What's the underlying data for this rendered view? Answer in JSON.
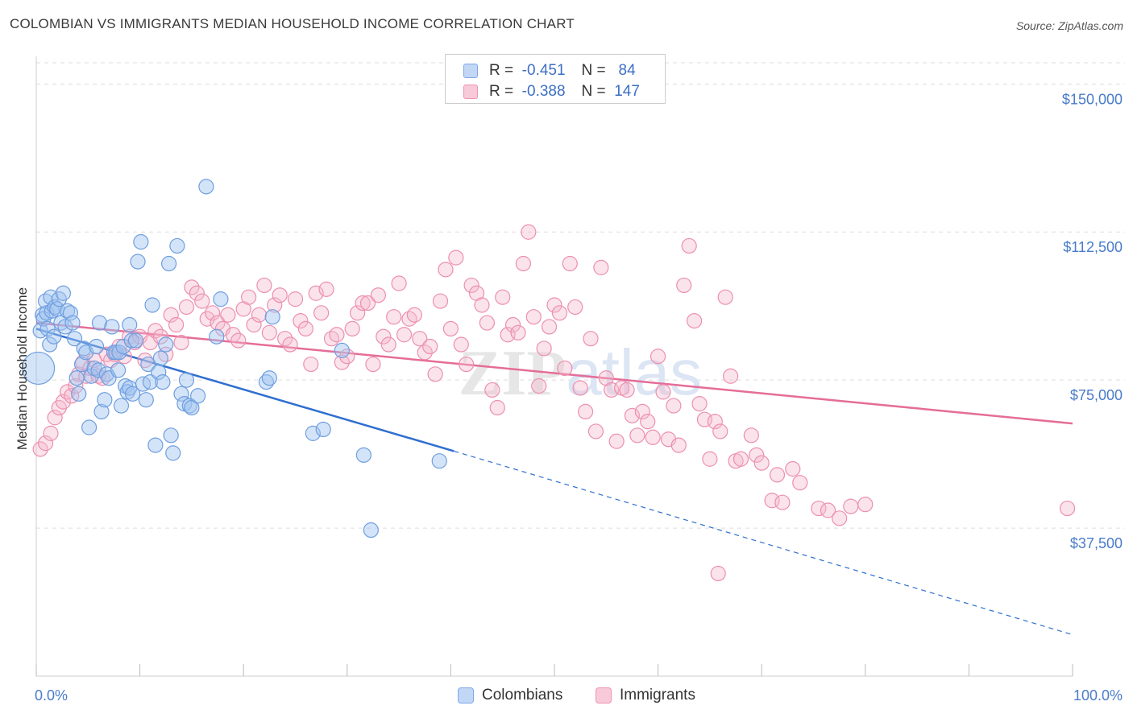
{
  "title": "COLOMBIAN VS IMMIGRANTS MEDIAN HOUSEHOLD INCOME CORRELATION CHART",
  "source": "Source: ZipAtlas.com",
  "watermark": "ZIPatlas",
  "legend": {
    "rows": [
      {
        "r_label": "R =",
        "r_value": "-0.451",
        "n_label": "N =",
        "n_value": "84",
        "color": "#7fa9e8",
        "fill": "#c2d6f5"
      },
      {
        "r_label": "R =",
        "r_value": "-0.388",
        "n_label": "N =",
        "n_value": "147",
        "color": "#ee94b4",
        "fill": "#f8c9d8"
      }
    ]
  },
  "bottom_legend": [
    {
      "label": "Colombians",
      "color": "#7fa9e8",
      "fill": "#c2d6f5"
    },
    {
      "label": "Immigrants",
      "color": "#ee94b4",
      "fill": "#f8c9d8"
    }
  ],
  "chart_data": {
    "type": "scatter",
    "title": "COLOMBIAN VS IMMIGRANTS MEDIAN HOUSEHOLD INCOME CORRELATION CHART",
    "xlabel": "",
    "ylabel": "Median Household Income",
    "xlim": [
      0,
      100
    ],
    "ylim": [
      0,
      157000
    ],
    "x_tick_labels": [
      "0.0%",
      "100.0%"
    ],
    "y_ticks": [
      37500,
      75000,
      112500,
      150000
    ],
    "y_tick_labels": [
      "$37,500",
      "$75,000",
      "$112,500",
      "$150,000"
    ],
    "grid": true,
    "legend_position": "top-center",
    "series": [
      {
        "name": "Colombians",
        "color": "#4a7fd4",
        "points": [
          [
            0.2,
            78000
          ],
          [
            0.4,
            87500
          ],
          [
            0.6,
            91500
          ],
          [
            0.7,
            90500
          ],
          [
            0.9,
            95000
          ],
          [
            1.0,
            92000
          ],
          [
            1.1,
            88000
          ],
          [
            1.3,
            84000
          ],
          [
            1.4,
            96000
          ],
          [
            1.5,
            92500
          ],
          [
            1.7,
            86000
          ],
          [
            1.8,
            93500
          ],
          [
            2.0,
            93000
          ],
          [
            2.2,
            95500
          ],
          [
            2.4,
            89500
          ],
          [
            2.6,
            97000
          ],
          [
            2.8,
            88500
          ],
          [
            3.0,
            92500
          ],
          [
            3.3,
            92000
          ],
          [
            3.5,
            89500
          ],
          [
            3.7,
            85500
          ],
          [
            3.9,
            75500
          ],
          [
            4.1,
            71500
          ],
          [
            4.4,
            79000
          ],
          [
            4.6,
            83000
          ],
          [
            4.8,
            82000
          ],
          [
            5.1,
            63000
          ],
          [
            5.3,
            76000
          ],
          [
            5.6,
            78000
          ],
          [
            5.8,
            83500
          ],
          [
            6.0,
            77500
          ],
          [
            6.1,
            89500
          ],
          [
            6.3,
            67000
          ],
          [
            6.6,
            70000
          ],
          [
            6.8,
            76500
          ],
          [
            7.0,
            75500
          ],
          [
            7.3,
            88500
          ],
          [
            7.5,
            82000
          ],
          [
            7.7,
            82000
          ],
          [
            7.9,
            77500
          ],
          [
            8.0,
            82000
          ],
          [
            8.2,
            68500
          ],
          [
            8.4,
            83500
          ],
          [
            8.6,
            73500
          ],
          [
            8.8,
            72000
          ],
          [
            9.0,
            73000
          ],
          [
            9.3,
            71500
          ],
          [
            9.0,
            89000
          ],
          [
            9.2,
            85000
          ],
          [
            9.6,
            85000
          ],
          [
            9.8,
            105000
          ],
          [
            10.1,
            110000
          ],
          [
            10.3,
            74000
          ],
          [
            10.6,
            70000
          ],
          [
            10.8,
            79000
          ],
          [
            11.0,
            74500
          ],
          [
            11.2,
            94000
          ],
          [
            11.5,
            58500
          ],
          [
            11.8,
            77000
          ],
          [
            12.0,
            80500
          ],
          [
            12.2,
            74500
          ],
          [
            12.5,
            84000
          ],
          [
            12.8,
            104500
          ],
          [
            13.0,
            61000
          ],
          [
            13.2,
            56500
          ],
          [
            13.6,
            109000
          ],
          [
            14.0,
            71500
          ],
          [
            14.3,
            69000
          ],
          [
            14.5,
            75000
          ],
          [
            14.8,
            68500
          ],
          [
            15.0,
            68000
          ],
          [
            15.6,
            71000
          ],
          [
            16.4,
            124000
          ],
          [
            17.4,
            86000
          ],
          [
            17.8,
            95500
          ],
          [
            22.2,
            74500
          ],
          [
            22.5,
            75500
          ],
          [
            22.8,
            91000
          ],
          [
            26.7,
            61500
          ],
          [
            27.7,
            62500
          ],
          [
            29.5,
            82500
          ],
          [
            31.6,
            56000
          ],
          [
            32.3,
            37000
          ],
          [
            38.9,
            54500
          ]
        ]
      },
      {
        "name": "Immigrants",
        "color": "#e56d97",
        "points": [
          [
            0.4,
            57500
          ],
          [
            0.9,
            59000
          ],
          [
            1.4,
            61500
          ],
          [
            1.8,
            65500
          ],
          [
            2.2,
            68000
          ],
          [
            2.6,
            69500
          ],
          [
            3.0,
            72000
          ],
          [
            3.4,
            71000
          ],
          [
            3.8,
            73500
          ],
          [
            4.1,
            76500
          ],
          [
            4.5,
            79500
          ],
          [
            4.8,
            76000
          ],
          [
            5.2,
            78000
          ],
          [
            5.6,
            80000
          ],
          [
            6.0,
            76000
          ],
          [
            6.4,
            75500
          ],
          [
            6.8,
            81500
          ],
          [
            7.2,
            80000
          ],
          [
            7.6,
            81500
          ],
          [
            8.0,
            83500
          ],
          [
            8.5,
            81000
          ],
          [
            9.0,
            86000
          ],
          [
            9.5,
            84500
          ],
          [
            10.0,
            86000
          ],
          [
            10.5,
            80000
          ],
          [
            11.0,
            84500
          ],
          [
            11.5,
            87500
          ],
          [
            12.0,
            86000
          ],
          [
            12.5,
            81500
          ],
          [
            13.0,
            91500
          ],
          [
            13.5,
            89000
          ],
          [
            14.0,
            84500
          ],
          [
            14.5,
            93500
          ],
          [
            15.0,
            98500
          ],
          [
            15.5,
            97000
          ],
          [
            16.0,
            95000
          ],
          [
            16.5,
            90500
          ],
          [
            17.0,
            92000
          ],
          [
            17.5,
            89500
          ],
          [
            18.0,
            88000
          ],
          [
            18.5,
            91500
          ],
          [
            19.0,
            86500
          ],
          [
            19.5,
            85000
          ],
          [
            20.0,
            93000
          ],
          [
            20.5,
            96000
          ],
          [
            21.0,
            89000
          ],
          [
            21.5,
            91500
          ],
          [
            22.0,
            99000
          ],
          [
            22.5,
            87000
          ],
          [
            23.0,
            94000
          ],
          [
            23.5,
            96500
          ],
          [
            24.0,
            85500
          ],
          [
            24.5,
            84000
          ],
          [
            25.0,
            95500
          ],
          [
            25.5,
            90000
          ],
          [
            26.0,
            88000
          ],
          [
            26.5,
            79000
          ],
          [
            27.0,
            97000
          ],
          [
            27.5,
            92000
          ],
          [
            28.0,
            98000
          ],
          [
            28.5,
            85500
          ],
          [
            29.0,
            86500
          ],
          [
            29.5,
            79500
          ],
          [
            30.0,
            81000
          ],
          [
            30.5,
            88000
          ],
          [
            31.0,
            92000
          ],
          [
            31.5,
            94500
          ],
          [
            32.0,
            94500
          ],
          [
            32.5,
            79000
          ],
          [
            33.0,
            96500
          ],
          [
            33.5,
            86000
          ],
          [
            34.0,
            84000
          ],
          [
            34.5,
            91000
          ],
          [
            35.0,
            99500
          ],
          [
            35.5,
            86500
          ],
          [
            36.0,
            90500
          ],
          [
            36.5,
            91500
          ],
          [
            37.0,
            85500
          ],
          [
            37.5,
            82000
          ],
          [
            38.0,
            83500
          ],
          [
            38.5,
            76500
          ],
          [
            39.0,
            95000
          ],
          [
            39.5,
            103000
          ],
          [
            40.0,
            88000
          ],
          [
            40.5,
            106000
          ],
          [
            41.0,
            84000
          ],
          [
            41.5,
            79000
          ],
          [
            42.0,
            99000
          ],
          [
            42.5,
            97000
          ],
          [
            43.0,
            94000
          ],
          [
            43.5,
            89500
          ],
          [
            44.0,
            72500
          ],
          [
            44.5,
            68000
          ],
          [
            45.0,
            96000
          ],
          [
            45.5,
            86500
          ],
          [
            46.0,
            89000
          ],
          [
            46.5,
            87000
          ],
          [
            47.0,
            104500
          ],
          [
            47.5,
            112500
          ],
          [
            48.0,
            91000
          ],
          [
            48.5,
            73500
          ],
          [
            49.0,
            83000
          ],
          [
            49.5,
            88500
          ],
          [
            50.0,
            94000
          ],
          [
            50.5,
            92000
          ],
          [
            51.0,
            78000
          ],
          [
            51.5,
            104500
          ],
          [
            52.0,
            93500
          ],
          [
            52.5,
            73000
          ],
          [
            53.0,
            67000
          ],
          [
            53.5,
            85500
          ],
          [
            54.0,
            62000
          ],
          [
            54.5,
            103500
          ],
          [
            55.0,
            75500
          ],
          [
            55.5,
            72500
          ],
          [
            56.0,
            59500
          ],
          [
            56.5,
            73000
          ],
          [
            57.0,
            72500
          ],
          [
            57.5,
            66000
          ],
          [
            58.0,
            61000
          ],
          [
            58.5,
            67000
          ],
          [
            59.0,
            64500
          ],
          [
            59.5,
            60500
          ],
          [
            60.0,
            81000
          ],
          [
            60.5,
            72000
          ],
          [
            61.0,
            60000
          ],
          [
            61.5,
            68500
          ],
          [
            62.0,
            58500
          ],
          [
            62.5,
            99000
          ],
          [
            63.0,
            109000
          ],
          [
            63.5,
            90000
          ],
          [
            64.0,
            69000
          ],
          [
            64.5,
            65000
          ],
          [
            65.0,
            55000
          ],
          [
            65.5,
            64500
          ],
          [
            66.0,
            62000
          ],
          [
            66.5,
            96000
          ],
          [
            67.0,
            76000
          ],
          [
            67.5,
            54500
          ],
          [
            68.0,
            55000
          ],
          [
            69.0,
            61000
          ],
          [
            69.5,
            56000
          ],
          [
            70.0,
            54000
          ],
          [
            71.0,
            44500
          ],
          [
            71.5,
            51000
          ],
          [
            72.0,
            44000
          ],
          [
            73.0,
            52500
          ],
          [
            73.7,
            49000
          ],
          [
            75.5,
            42500
          ],
          [
            76.4,
            42000
          ],
          [
            77.5,
            40000
          ],
          [
            78.6,
            43000
          ],
          [
            80.0,
            43500
          ],
          [
            65.8,
            26000
          ],
          [
            99.5,
            42500
          ]
        ]
      }
    ],
    "trend_lines": [
      {
        "series": "Colombians",
        "x_start": 0,
        "y_start": 88000,
        "x_solid_end": 40.3,
        "y_solid_end": 57000,
        "x_end": 100,
        "y_end": 10500,
        "extension": "dashed"
      },
      {
        "series": "Immigrants",
        "x_start": 0,
        "y_start": 89500,
        "x_end": 100,
        "y_end": 64000
      }
    ]
  }
}
